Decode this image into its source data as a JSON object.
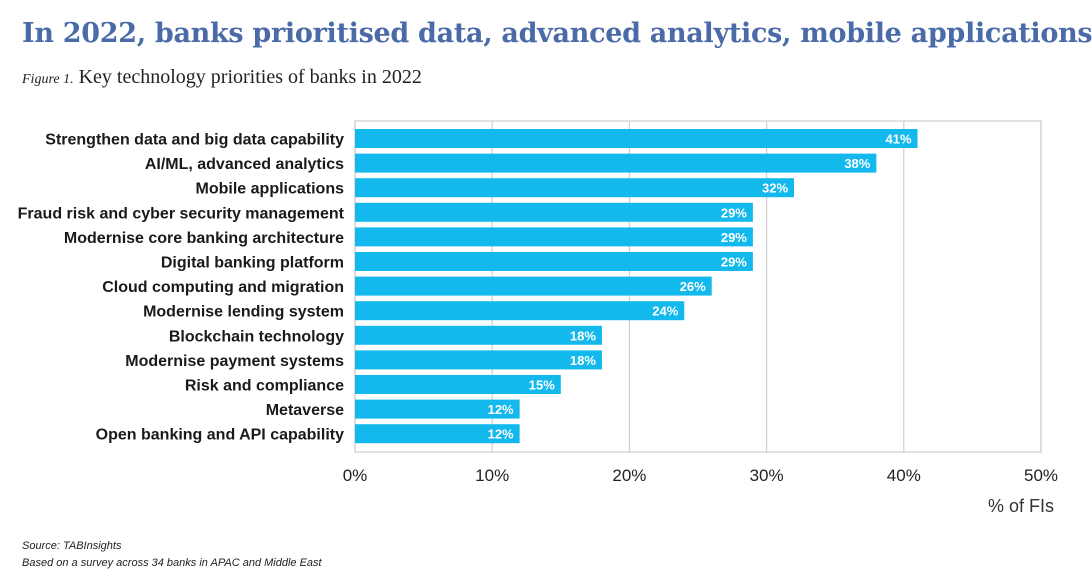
{
  "title": "In 2022, banks prioritised data, advanced analytics, mobile applications",
  "figure_label": "Figure 1.",
  "subtitle": "Key technology priorities of banks in 2022",
  "units_label": "% of FIs",
  "source": "Source: TABInsights",
  "note": "Based on a survey across 34 banks in APAC and Middle East",
  "colors": {
    "title": "#4a6aa8",
    "bar": "#13b9ec",
    "grid": "#cfcfcf",
    "bar_label": "#ffffff",
    "category_text": "#1a1a1a"
  },
  "chart_data": {
    "type": "bar",
    "orientation": "horizontal",
    "categories": [
      "Strengthen data and big data capability",
      "AI/ML, advanced analytics",
      "Mobile applications",
      "Fraud risk and cyber security management",
      "Modernise core banking architecture",
      "Digital banking platform",
      "Cloud computing and migration",
      "Modernise lending system",
      "Blockchain technology",
      "Modernise payment systems",
      "Risk and compliance",
      "Metaverse",
      "Open banking and API capability"
    ],
    "values": [
      41,
      38,
      32,
      29,
      29,
      29,
      26,
      24,
      18,
      18,
      15,
      12,
      12
    ],
    "value_labels": [
      "41%",
      "38%",
      "32%",
      "29%",
      "29%",
      "29%",
      "26%",
      "24%",
      "18%",
      "18%",
      "15%",
      "12%",
      "12%"
    ],
    "xlim": [
      0,
      50
    ],
    "xticks": [
      0,
      10,
      20,
      30,
      40,
      50
    ],
    "xtick_labels": [
      "0%",
      "10%",
      "20%",
      "30%",
      "40%",
      "50%"
    ],
    "xlabel": "% of FIs",
    "grid": true
  }
}
